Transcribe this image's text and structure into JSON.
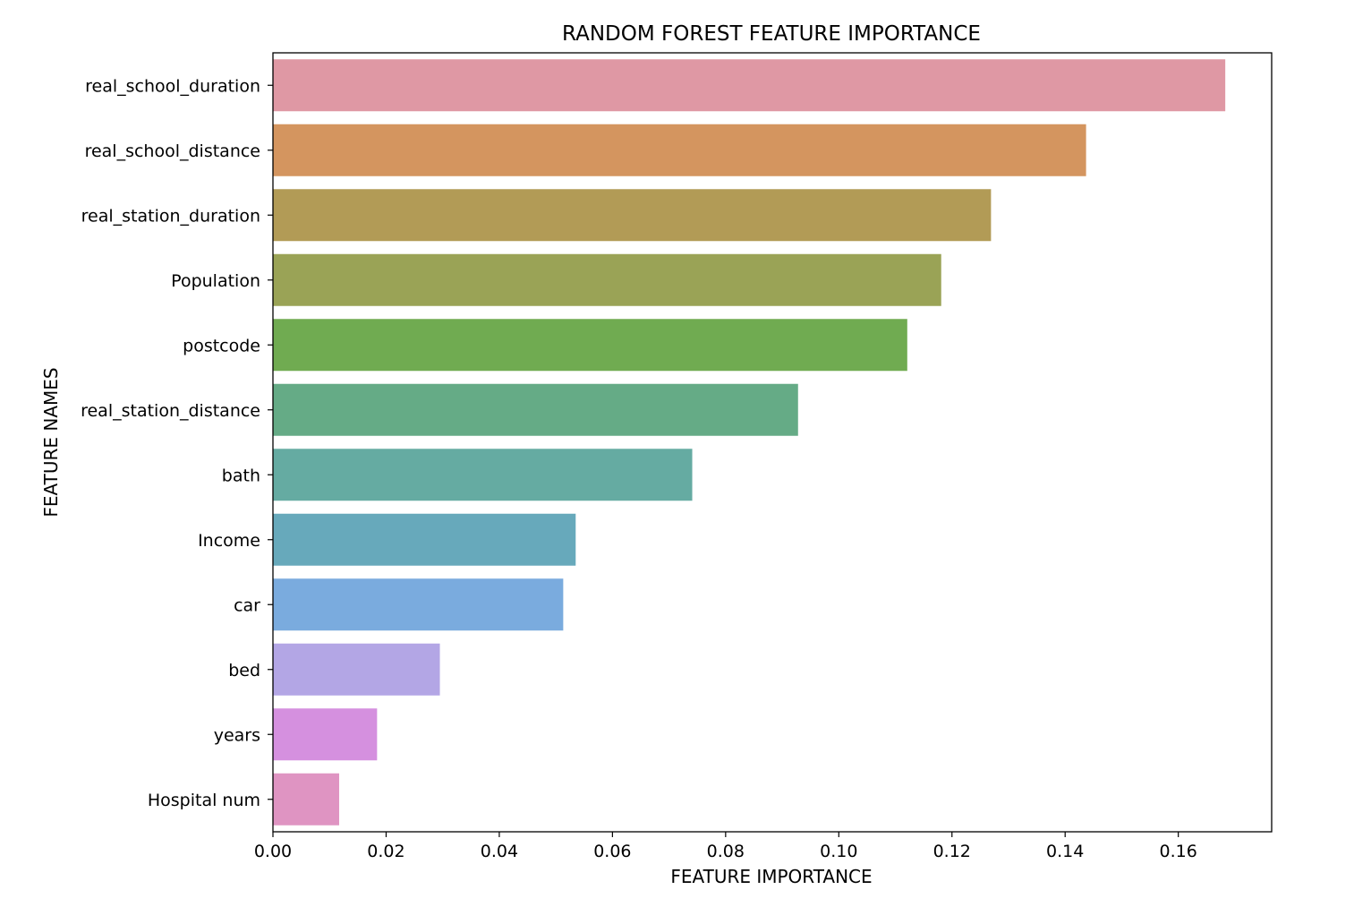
{
  "chart_data": {
    "type": "bar",
    "orientation": "horizontal",
    "title": "RANDOM FOREST FEATURE IMPORTANCE",
    "xlabel": "FEATURE IMPORTANCE",
    "ylabel": "FEATURE NAMES",
    "xlim": [
      0,
      0.1765
    ],
    "xticks": [
      0.0,
      0.02,
      0.04,
      0.06,
      0.08,
      0.1,
      0.12,
      0.14,
      0.16
    ],
    "xtick_labels": [
      "0.00",
      "0.02",
      "0.04",
      "0.06",
      "0.08",
      "0.10",
      "0.12",
      "0.14",
      "0.16"
    ],
    "grid": false,
    "legend": "none",
    "categories": [
      "real_school_duration",
      "real_school_distance",
      "real_station_duration",
      "Population",
      "postcode",
      "real_station_distance",
      "bath",
      "Income",
      "car",
      "bed",
      "years",
      "Hospital num"
    ],
    "values": [
      0.1683,
      0.1437,
      0.1269,
      0.1181,
      0.1121,
      0.0928,
      0.0741,
      0.0535,
      0.0513,
      0.0295,
      0.0184,
      0.0117
    ],
    "colors": [
      "#df98a4",
      "#d4955f",
      "#b29b56",
      "#9aa356",
      "#70ab51",
      "#65ab86",
      "#65aba2",
      "#67a9bb",
      "#7aabde",
      "#b3a6e5",
      "#d590df",
      "#df94c2"
    ]
  }
}
